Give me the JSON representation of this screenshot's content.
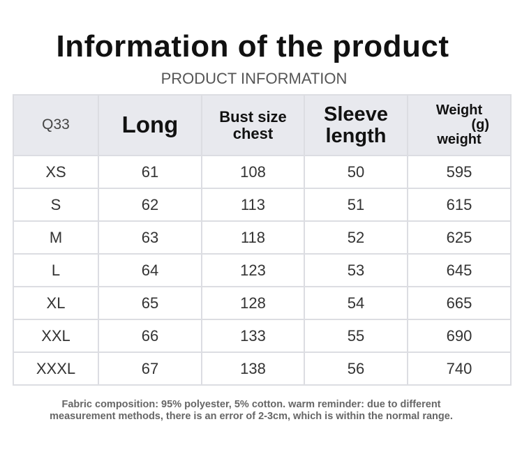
{
  "header": {
    "title": "Information of the product",
    "subtitle": "PRODUCT INFORMATION"
  },
  "table": {
    "headers": [
      [
        "Q33"
      ],
      [
        "Long"
      ],
      [
        "Bust size",
        "chest"
      ],
      [
        "Sleeve",
        "length"
      ],
      [
        "Weight",
        "(g)",
        "weight"
      ]
    ],
    "rows": [
      [
        "XS",
        "61",
        "108",
        "50",
        "595"
      ],
      [
        "S",
        "62",
        "113",
        "51",
        "615"
      ],
      [
        "M",
        "63",
        "118",
        "52",
        "625"
      ],
      [
        "L",
        "64",
        "123",
        "53",
        "645"
      ],
      [
        "XL",
        "65",
        "128",
        "54",
        "665"
      ],
      [
        "XXL",
        "66",
        "133",
        "55",
        "690"
      ],
      [
        "XXXL",
        "67",
        "138",
        "56",
        "740"
      ]
    ]
  },
  "footer": {
    "lines": [
      "Fabric composition: 95% polyester, 5% cotton. warm reminder: due to different",
      "measurement methods, there is an error of 2-3cm, which is within the normal range."
    ]
  }
}
